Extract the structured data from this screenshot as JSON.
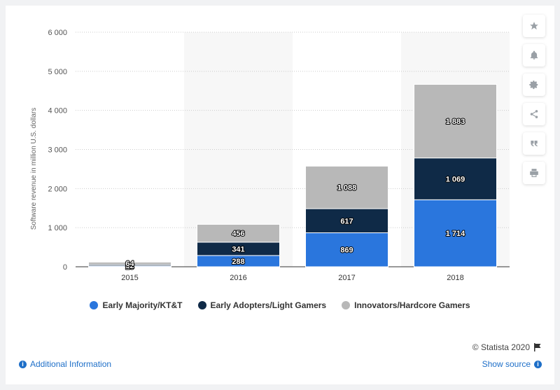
{
  "toolbar": {
    "icons": [
      "star-icon",
      "bell-icon",
      "gear-icon",
      "share-icon",
      "quote-icon",
      "print-icon"
    ]
  },
  "chart_data": {
    "type": "bar",
    "stacked": true,
    "categories": [
      "2015",
      "2016",
      "2017",
      "2018"
    ],
    "series": [
      {
        "name": "Early Majority/KT&T",
        "color": "#2a76dd",
        "values": [
          23,
          288,
          869,
          1714
        ],
        "labels": [
          "23",
          "288",
          "869",
          "1 714"
        ]
      },
      {
        "name": "Early Adopters/Light Gamers",
        "color": "#0f2a47",
        "values": [
          32,
          341,
          617,
          1069
        ],
        "labels": [
          "32",
          "341",
          "617",
          "1 069"
        ]
      },
      {
        "name": "Innovators/Hardcore Gamers",
        "color": "#b8b8b8",
        "values": [
          64,
          456,
          1088,
          1883
        ],
        "labels": [
          "64",
          "456",
          "1 088",
          "1 883"
        ]
      }
    ],
    "ylabel": "Software revenue in million U.S. dollars",
    "ylim": [
      0,
      6000
    ],
    "yticks": [
      0,
      1000,
      2000,
      3000,
      4000,
      5000,
      6000
    ],
    "ytick_labels": [
      "0",
      "1 000",
      "2 000",
      "3 000",
      "4 000",
      "5 000",
      "6 000"
    ],
    "grid": true,
    "legend_position": "bottom"
  },
  "footer": {
    "credit": "© Statista 2020",
    "additional_info": "Additional Information",
    "show_source": "Show source"
  }
}
